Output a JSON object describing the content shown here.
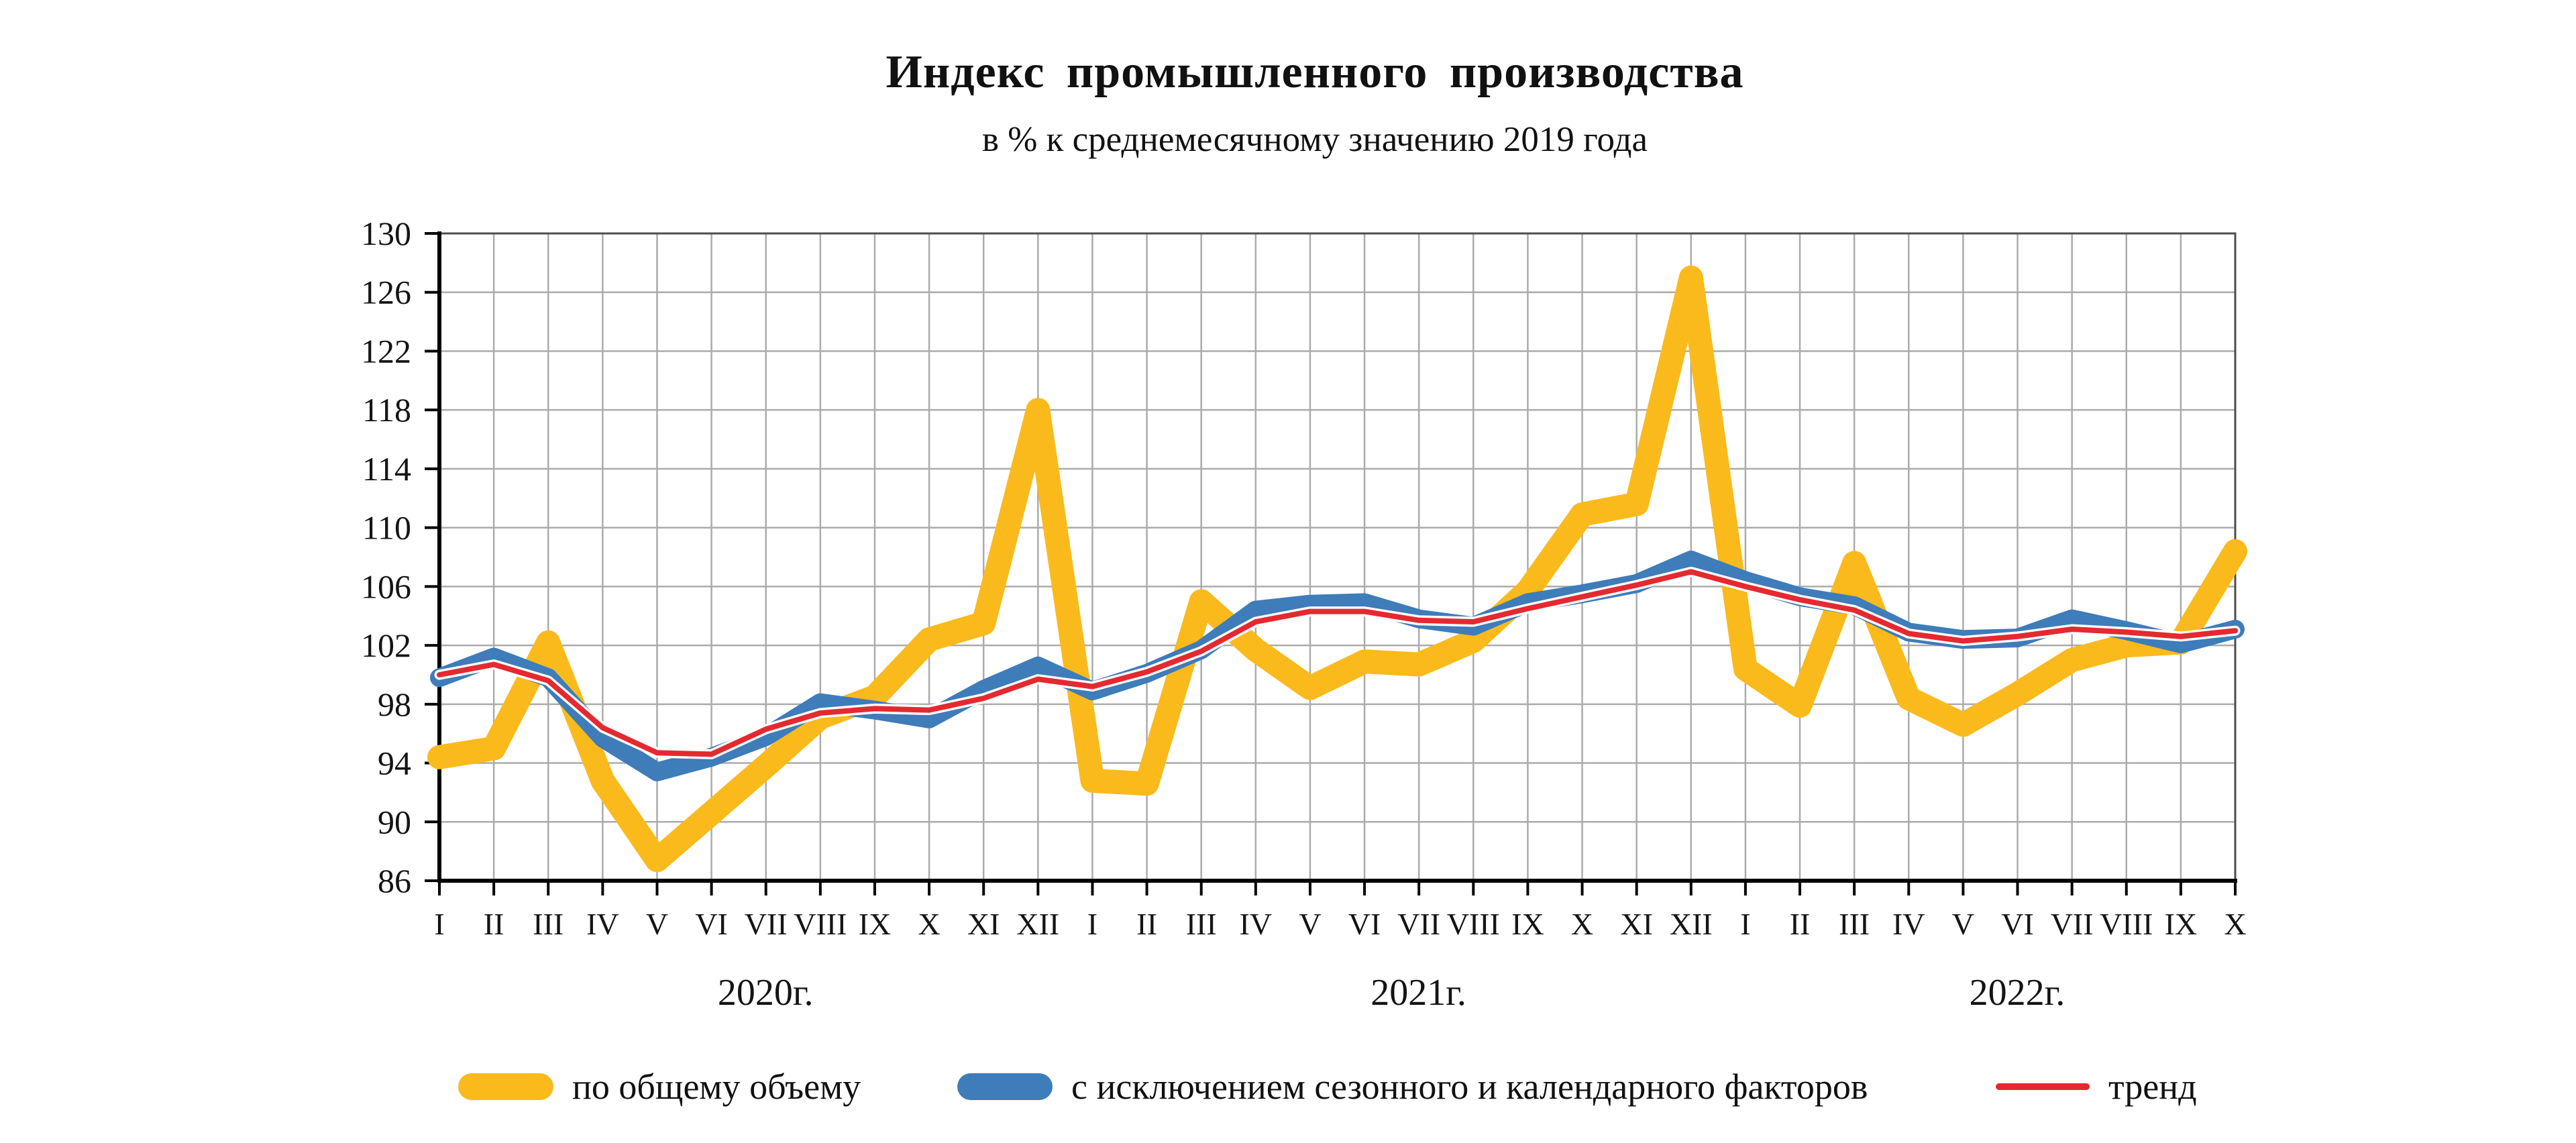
{
  "title": "Индекс промышленного производства",
  "subtitle": "в % к среднемесячному значению 2019 года",
  "chart_data": {
    "type": "line",
    "title": "Индекс промышленного производства",
    "subtitle": "в % к среднемесячному значению 2019 года",
    "xlabel": "",
    "ylabel": "",
    "ylim": [
      86,
      130
    ],
    "yticks": [
      86,
      90,
      94,
      98,
      102,
      106,
      110,
      114,
      118,
      122,
      126,
      130
    ],
    "grid": true,
    "legend_position": "bottom",
    "grid_color": "#ABABAB",
    "axis_color": "#000000",
    "border_color": "#4d4d4d",
    "x_categories": [
      "I",
      "II",
      "III",
      "IV",
      "V",
      "VI",
      "VII",
      "VIII",
      "IX",
      "X",
      "XI",
      "XII",
      "I",
      "II",
      "III",
      "IV",
      "V",
      "VI",
      "VII",
      "VIII",
      "IX",
      "X",
      "XI",
      "XII",
      "I",
      "II",
      "III",
      "IV",
      "V",
      "VI",
      "VII",
      "VIII",
      "IX",
      "X"
    ],
    "years": [
      {
        "label": "2020г.",
        "from": 0,
        "to": 11
      },
      {
        "label": "2021г.",
        "from": 12,
        "to": 23
      },
      {
        "label": "2022г.",
        "from": 24,
        "to": 33
      }
    ],
    "series": [
      {
        "name": "по общему объему",
        "color": "#FBBA1C",
        "width": 36,
        "casing": false,
        "values": [
          94.4,
          95.0,
          102.2,
          92.8,
          87.4,
          90.6,
          93.8,
          97.1,
          98.5,
          102.4,
          103.5,
          118.0,
          92.8,
          92.6,
          105.0,
          101.7,
          99.1,
          100.9,
          100.7,
          102.3,
          105.7,
          110.9,
          111.6,
          127.0,
          100.4,
          97.9,
          107.6,
          98.4,
          96.6,
          98.7,
          101.0,
          102.0,
          102.2,
          108.4
        ]
      },
      {
        "name": "с исключением сезонного и календарного факторов",
        "color": "#3E7CBA",
        "width": 28,
        "casing": false,
        "values": [
          99.8,
          101.2,
          99.8,
          95.7,
          93.4,
          94.4,
          95.8,
          98.1,
          97.6,
          97.0,
          99.0,
          100.6,
          98.9,
          100.1,
          101.7,
          104.4,
          104.8,
          104.9,
          103.8,
          103.3,
          104.9,
          105.5,
          106.2,
          107.8,
          106.4,
          105.3,
          104.7,
          102.9,
          102.4,
          102.5,
          103.8,
          103.0,
          102.1,
          103.1
        ]
      },
      {
        "name": "тренд",
        "color": "#E52930",
        "width": 8,
        "casing": true,
        "values": [
          100.0,
          100.7,
          99.6,
          96.4,
          94.7,
          94.6,
          96.3,
          97.4,
          97.7,
          97.6,
          98.4,
          99.7,
          99.2,
          100.2,
          101.6,
          103.6,
          104.3,
          104.3,
          103.7,
          103.6,
          104.5,
          105.3,
          106.1,
          107.0,
          106.0,
          105.1,
          104.4,
          102.8,
          102.3,
          102.6,
          103.1,
          102.9,
          102.6,
          103.0
        ]
      }
    ]
  },
  "legend": {
    "items": [
      {
        "label": "по общему объему"
      },
      {
        "label": "с исключением сезонного и календарного факторов"
      },
      {
        "label": "тренд"
      }
    ]
  }
}
